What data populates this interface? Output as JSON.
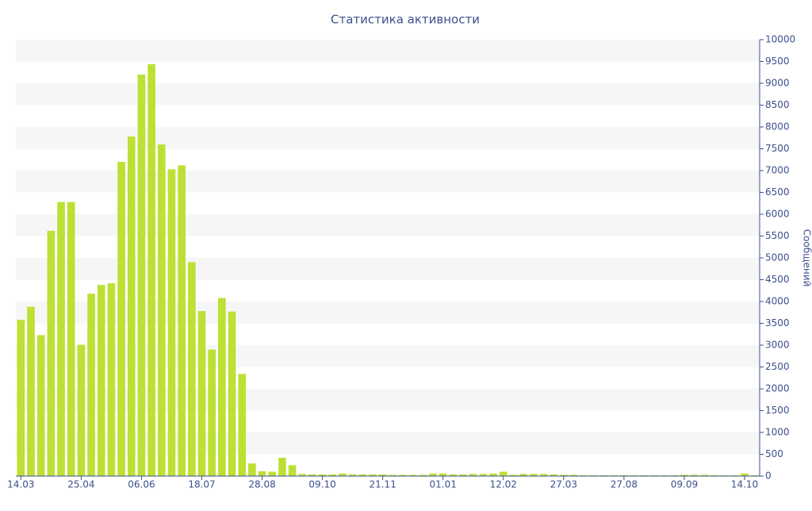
{
  "chart_data": {
    "type": "bar",
    "title": "Статистика активности",
    "y_label": "Сообщений",
    "categories": [
      "14.03",
      null,
      null,
      null,
      null,
      null,
      "25.04",
      null,
      null,
      null,
      null,
      null,
      "06.06",
      null,
      null,
      null,
      null,
      null,
      "18.07",
      null,
      null,
      null,
      null,
      null,
      "28.08",
      null,
      null,
      null,
      null,
      null,
      "09.10",
      null,
      null,
      null,
      null,
      null,
      "21.11",
      null,
      null,
      null,
      null,
      null,
      "01.01",
      null,
      null,
      null,
      null,
      null,
      "12.02",
      null,
      null,
      null,
      null,
      null,
      "27.03",
      null,
      null,
      null,
      null,
      null,
      "27.08",
      null,
      null,
      null,
      null,
      null,
      "09.09",
      null,
      null,
      null,
      null,
      null,
      "14.10",
      null
    ],
    "values": [
      3580,
      3880,
      3230,
      5620,
      6280,
      6280,
      3010,
      4180,
      4380,
      4420,
      7200,
      7780,
      9200,
      9440,
      7600,
      7030,
      7120,
      4900,
      3780,
      2900,
      4080,
      3770,
      2340,
      290,
      110,
      100,
      420,
      250,
      50,
      40,
      40,
      40,
      60,
      40,
      40,
      40,
      40,
      30,
      30,
      30,
      30,
      60,
      60,
      40,
      40,
      50,
      50,
      60,
      100,
      30,
      50,
      50,
      50,
      40,
      30,
      30,
      20,
      20,
      20,
      20,
      20,
      20,
      20,
      20,
      20,
      20,
      30,
      30,
      30,
      20,
      20,
      20,
      60,
      20
    ],
    "color": "#bde034",
    "ylim": [
      0,
      10000
    ],
    "yticks": [
      0,
      500,
      1000,
      1500,
      2000,
      2500,
      3000,
      3500,
      4000,
      4500,
      5000,
      5500,
      6000,
      6500,
      7000,
      7500,
      8000,
      8500,
      9000,
      9500,
      10000
    ],
    "y_axis_side": "right",
    "grid": "bands"
  }
}
